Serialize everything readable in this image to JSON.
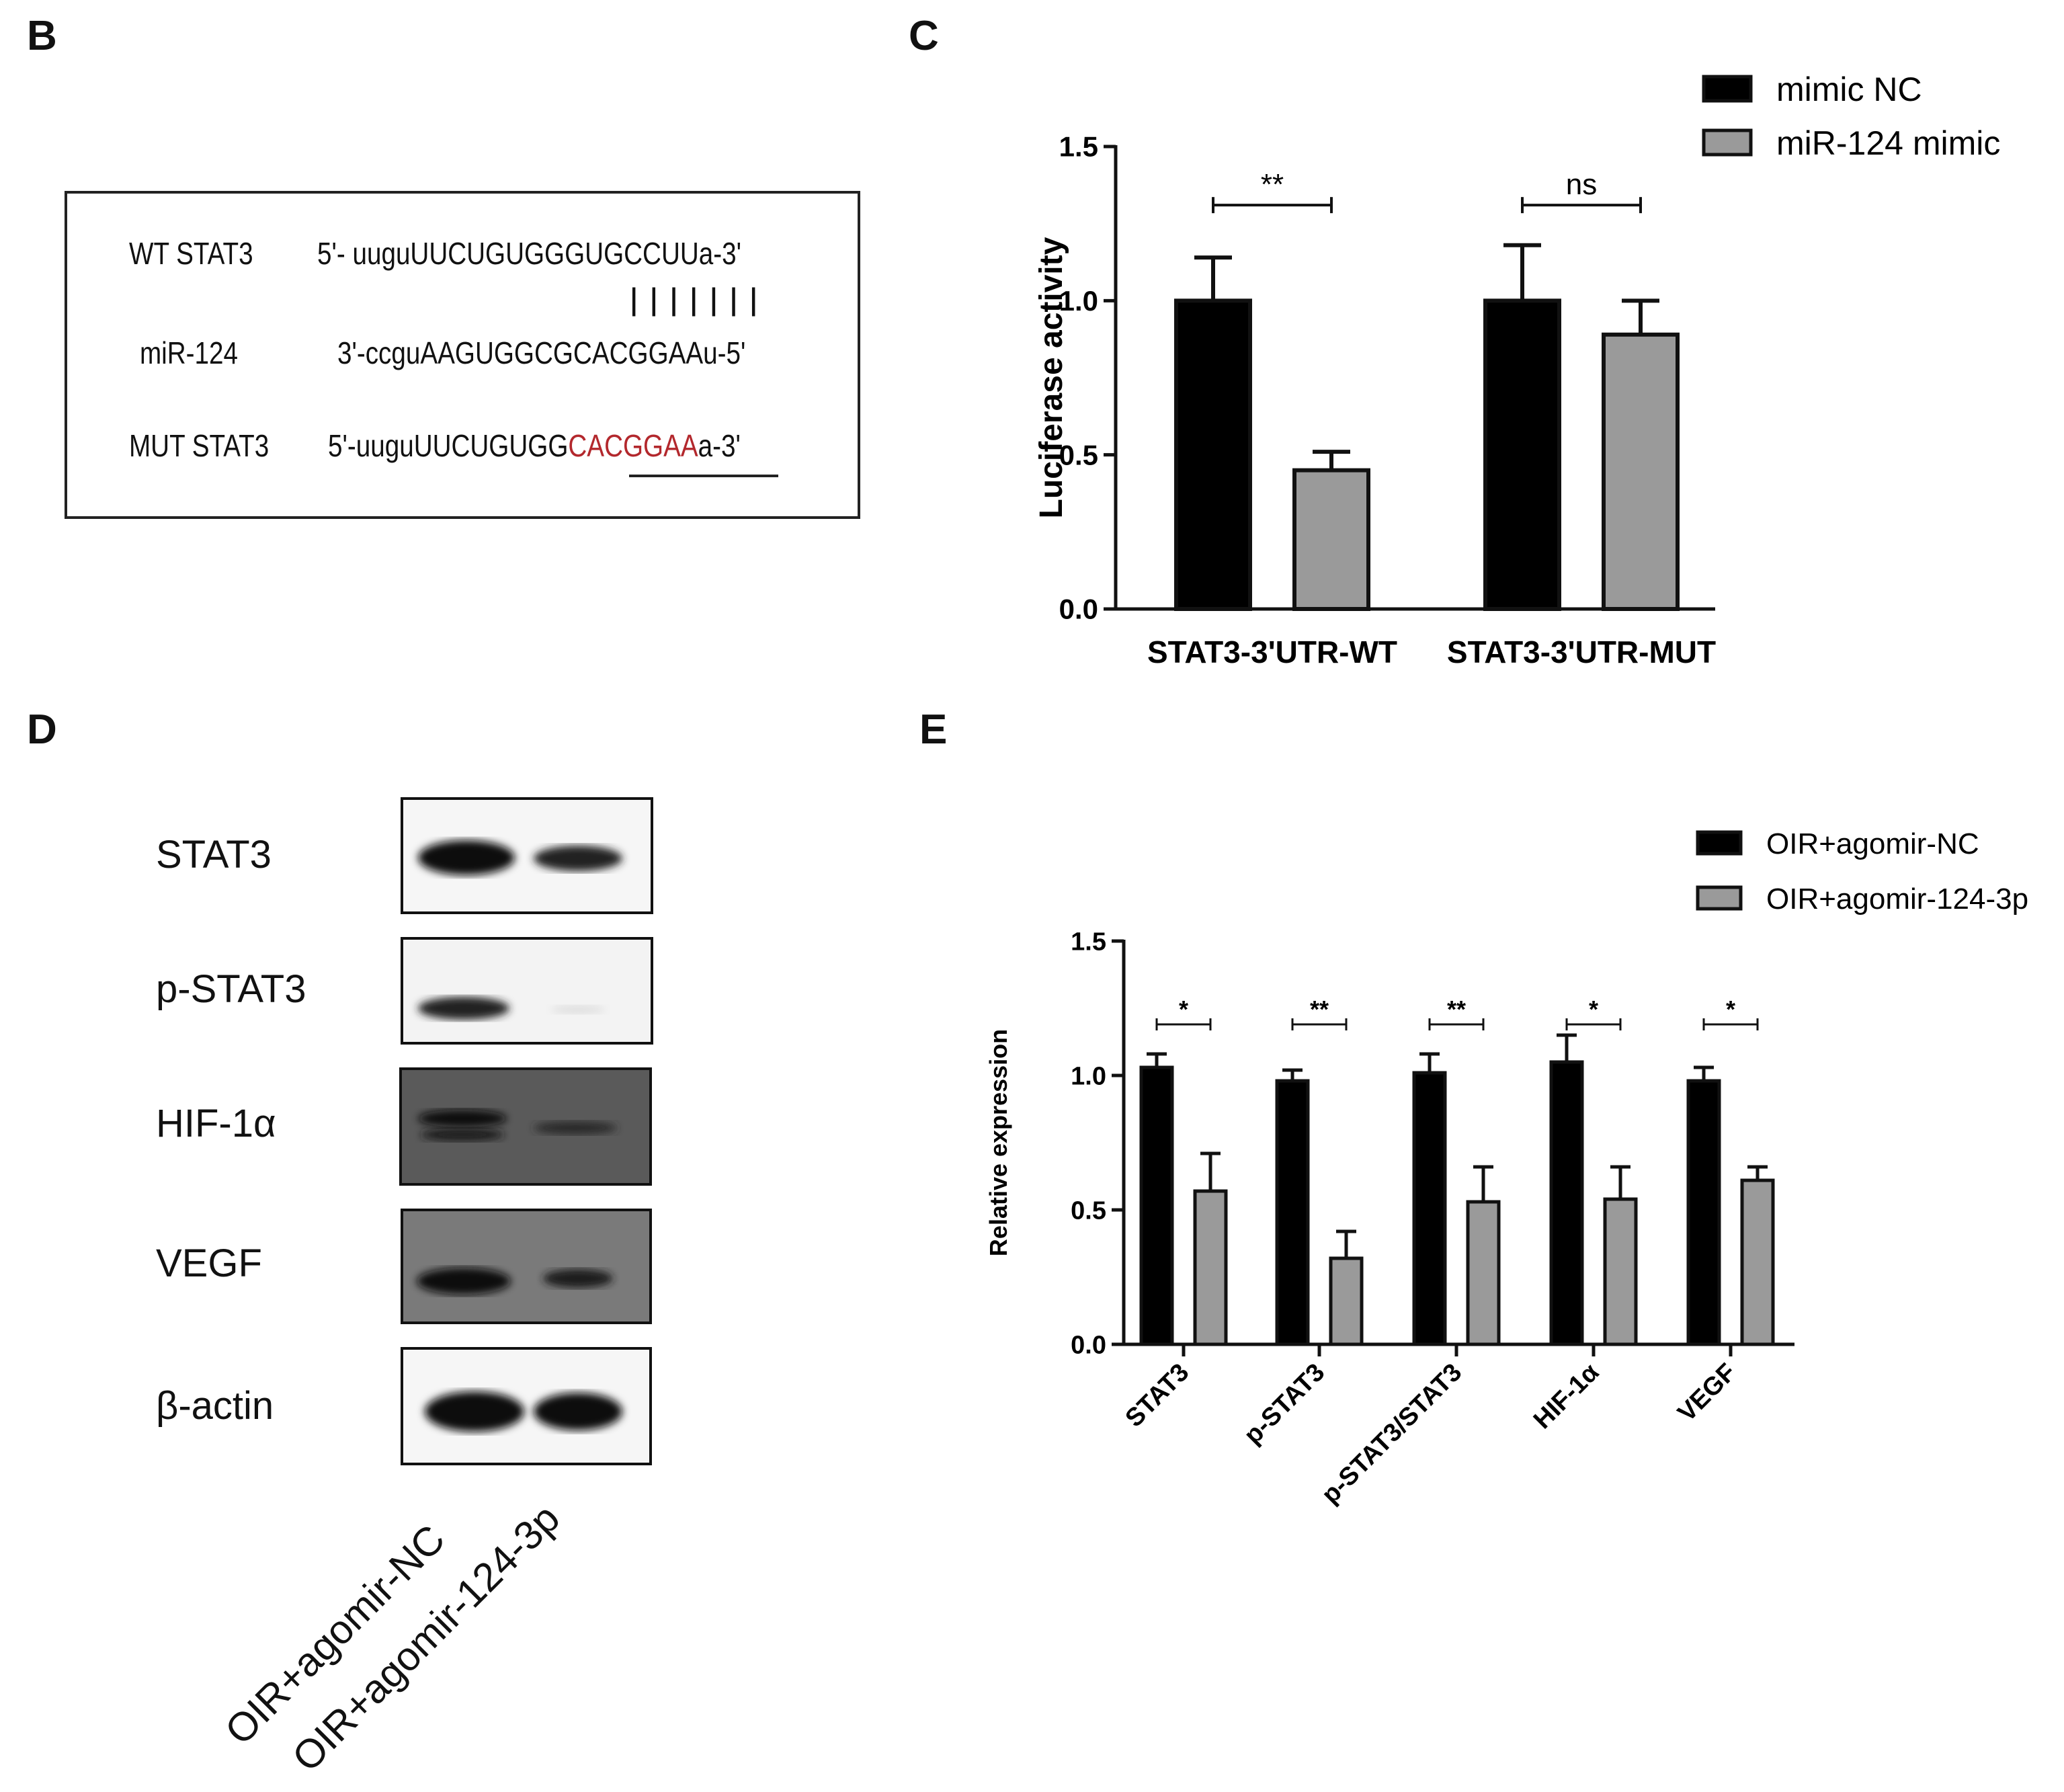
{
  "panels": {
    "b": "B",
    "c": "C",
    "d": "D",
    "e": "E"
  },
  "sequences": {
    "wt_label": "WT STAT3",
    "wt_seq": "5'- uuguUUCUGUGGGUGCCUUa-3'",
    "pairing": "| | | | | | |",
    "mir_label": "miR-124",
    "mir_seq": "3'-ccguAAGUGGCGCACGGAAu-5'",
    "mut_label": "MUT STAT3",
    "mut_seq_prefix": "5'-uuguUUCUGUGG",
    "mut_seq_mut": "CACGGAA",
    "mut_seq_suffix": "a-3'",
    "mut_color": "#b3282d"
  },
  "western_blot": {
    "bands": [
      "STAT3",
      "p-STAT3",
      "HIF-1α",
      "VEGF",
      "β-actin"
    ],
    "lanes": [
      "OIR+agomir-NC",
      "OIR+agomir-124-3p"
    ]
  },
  "chart_data": [
    {
      "type": "bar",
      "panel": "C",
      "categories": [
        "STAT3-3'UTR-WT",
        "STAT3-3'UTR-MUT"
      ],
      "series": [
        {
          "name": "mimic NC",
          "values": [
            1.0,
            1.0
          ],
          "errors": [
            0.14,
            0.18
          ],
          "color": "#000000"
        },
        {
          "name": "miR-124 mimic",
          "values": [
            0.45,
            0.89
          ],
          "errors": [
            0.06,
            0.11
          ],
          "color": "#9a9a9a"
        }
      ],
      "significance": [
        "**",
        "ns"
      ],
      "xlabel": "",
      "ylabel": "Luciferase activity",
      "ylim": [
        0,
        1.5
      ],
      "yticks": [
        "0.0",
        "0.5",
        "1.0",
        "1.5"
      ],
      "legend": "top-right",
      "grid": false
    },
    {
      "type": "bar",
      "panel": "E",
      "categories": [
        "STAT3",
        "p-STAT3",
        "p-STAT3/STAT3",
        "HIF-1α",
        "VEGF"
      ],
      "series": [
        {
          "name": "OIR+agomir-NC",
          "values": [
            1.03,
            0.98,
            1.01,
            1.05,
            0.98
          ],
          "errors": [
            0.05,
            0.04,
            0.07,
            0.1,
            0.05
          ],
          "color": "#000000"
        },
        {
          "name": "OIR+agomir-124-3p",
          "values": [
            0.57,
            0.32,
            0.53,
            0.54,
            0.61
          ],
          "errors": [
            0.14,
            0.1,
            0.13,
            0.12,
            0.05
          ],
          "color": "#9a9a9a"
        }
      ],
      "significance": [
        "*",
        "**",
        "**",
        "*",
        "*"
      ],
      "xlabel": "",
      "ylabel": "Relative expression",
      "ylim": [
        0,
        1.5
      ],
      "yticks": [
        "0.0",
        "0.5",
        "1.0",
        "1.5"
      ],
      "legend": "top-right",
      "grid": false
    }
  ]
}
